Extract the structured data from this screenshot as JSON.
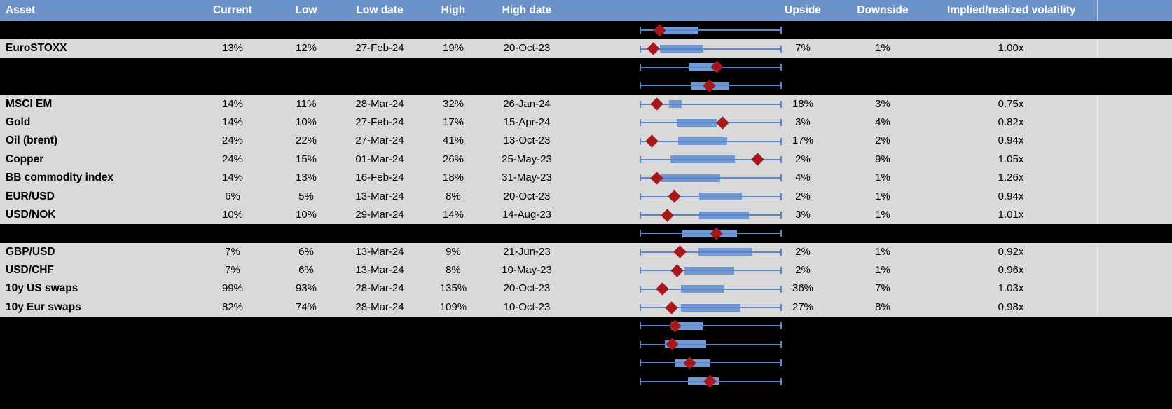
{
  "header": {
    "labels": {
      "asset": "Asset",
      "current": "Current",
      "low": "Low",
      "low_date": "Low date",
      "high": "High",
      "high_date": "High date",
      "upside": "Upside",
      "downside": "Downside",
      "implied_realized": "Implied/realized volatility"
    }
  },
  "colors": {
    "header_bg": "#6b93c9",
    "header_text": "#ffffff",
    "row_gray": "#d9d9d9",
    "row_black": "#000000",
    "whisker_blue": "#5b86c8",
    "box_blue": "#7299d4",
    "marker_red": "#a4181e",
    "divider_gray": "#a6a6a6"
  },
  "chart_data": {
    "type": "boxplot",
    "orientation": "horizontal",
    "title": "Implied volatility ranges by asset",
    "note": "Per row: whisker spans the period low-to-high implied volatility (normalized 0-1 across full width); blue box = middle range of the period; red diamond = current level. box and marker values are fractions of the whisker span. Rows with empty asset labels are blacked-out/redacted rows that still show a box plot.",
    "whisker_span": [
      0,
      1
    ],
    "rows": [
      {
        "redacted": true,
        "asset": "",
        "current": "",
        "low": "",
        "low_date": "",
        "high": "",
        "high_date": "",
        "upside": "",
        "downside": "",
        "implied_realized": "",
        "box": [
          0.168,
          0.416
        ],
        "marker": 0.139
      },
      {
        "redacted": false,
        "asset": "EuroSTOXX",
        "current": "13%",
        "low": "12%",
        "low_date": "27-Feb-24",
        "high": "19%",
        "high_date": "20-Oct-23",
        "upside": "7%",
        "downside": "1%",
        "implied_realized": "1.00x",
        "box": [
          0.144,
          0.45
        ],
        "marker": 0.094
      },
      {
        "redacted": true,
        "asset": "",
        "current": "",
        "low": "",
        "low_date": "",
        "high": "",
        "high_date": "",
        "upside": "",
        "downside": "",
        "implied_realized": "",
        "box": [
          0.347,
          0.564
        ],
        "marker": 0.545
      },
      {
        "redacted": true,
        "asset": "",
        "current": "",
        "low": "",
        "low_date": "",
        "high": "",
        "high_date": "",
        "upside": "",
        "downside": "",
        "implied_realized": "",
        "box": [
          0.366,
          0.629
        ],
        "marker": 0.49
      },
      {
        "redacted": false,
        "asset": "MSCI EM",
        "current": "14%",
        "low": "11%",
        "low_date": "28-Mar-24",
        "high": "32%",
        "high_date": "26-Jan-24",
        "upside": "18%",
        "downside": "3%",
        "implied_realized": "0.75x",
        "box": [
          0.208,
          0.297
        ],
        "marker": 0.119
      },
      {
        "redacted": false,
        "asset": "Gold",
        "current": "14%",
        "low": "10%",
        "low_date": "27-Feb-24",
        "high": "17%",
        "high_date": "15-Apr-24",
        "upside": "3%",
        "downside": "4%",
        "implied_realized": "0.82x",
        "box": [
          0.262,
          0.54
        ],
        "marker": 0.584
      },
      {
        "redacted": false,
        "asset": "Oil (brent)",
        "current": "24%",
        "low": "22%",
        "low_date": "27-Mar-24",
        "high": "41%",
        "high_date": "13-Oct-23",
        "upside": "17%",
        "downside": "2%",
        "implied_realized": "0.94x",
        "box": [
          0.272,
          0.614
        ],
        "marker": 0.084
      },
      {
        "redacted": false,
        "asset": "Copper",
        "current": "24%",
        "low": "15%",
        "low_date": "01-Mar-24",
        "high": "26%",
        "high_date": "25-May-23",
        "upside": "2%",
        "downside": "9%",
        "implied_realized": "1.05x",
        "box": [
          0.218,
          0.668
        ],
        "marker": 0.832
      },
      {
        "redacted": false,
        "asset": "BB commodity index",
        "current": "14%",
        "low": "13%",
        "low_date": "16-Feb-24",
        "high": "18%",
        "high_date": "31-May-23",
        "upside": "4%",
        "downside": "1%",
        "implied_realized": "1.26x",
        "box": [
          0.149,
          0.569
        ],
        "marker": 0.119
      },
      {
        "redacted": false,
        "asset": "EUR/USD",
        "current": "6%",
        "low": "5%",
        "low_date": "13-Mar-24",
        "high": "8%",
        "high_date": "20-Oct-23",
        "upside": "2%",
        "downside": "1%",
        "implied_realized": "0.94x",
        "box": [
          0.421,
          0.718
        ],
        "marker": 0.243
      },
      {
        "redacted": false,
        "asset": "USD/NOK",
        "current": "10%",
        "low": "10%",
        "low_date": "29-Mar-24",
        "high": "14%",
        "high_date": "14-Aug-23",
        "upside": "3%",
        "downside": "1%",
        "implied_realized": "1.01x",
        "box": [
          0.421,
          0.767
        ],
        "marker": 0.193
      },
      {
        "redacted": true,
        "asset": "",
        "current": "",
        "low": "",
        "low_date": "",
        "high": "",
        "high_date": "",
        "upside": "",
        "downside": "",
        "implied_realized": "",
        "box": [
          0.302,
          0.683
        ],
        "marker": 0.54
      },
      {
        "redacted": false,
        "asset": "GBP/USD",
        "current": "7%",
        "low": "6%",
        "low_date": "13-Mar-24",
        "high": "9%",
        "high_date": "21-Jun-23",
        "upside": "2%",
        "downside": "1%",
        "implied_realized": "0.92x",
        "box": [
          0.416,
          0.792
        ],
        "marker": 0.282
      },
      {
        "redacted": false,
        "asset": "USD/CHF",
        "current": "7%",
        "low": "6%",
        "low_date": "13-Mar-24",
        "high": "8%",
        "high_date": "10-May-23",
        "upside": "2%",
        "downside": "1%",
        "implied_realized": "0.96x",
        "box": [
          0.317,
          0.663
        ],
        "marker": 0.262
      },
      {
        "redacted": false,
        "asset": "10y US swaps",
        "current": "99%",
        "low": "93%",
        "low_date": "28-Mar-24",
        "high": "135%",
        "high_date": "20-Oct-23",
        "upside": "36%",
        "downside": "7%",
        "implied_realized": "1.03x",
        "box": [
          0.292,
          0.594
        ],
        "marker": 0.158
      },
      {
        "redacted": false,
        "asset": "10y Eur swaps",
        "current": "82%",
        "low": "74%",
        "low_date": "28-Mar-24",
        "high": "109%",
        "high_date": "10-Oct-23",
        "upside": "27%",
        "downside": "8%",
        "implied_realized": "0.98x",
        "box": [
          0.292,
          0.708
        ],
        "marker": 0.223
      },
      {
        "redacted": true,
        "asset": "",
        "current": "",
        "low": "",
        "low_date": "",
        "high": "",
        "high_date": "",
        "upside": "",
        "downside": "",
        "implied_realized": "",
        "box": [
          0.223,
          0.441
        ],
        "marker": 0.248
      },
      {
        "redacted": true,
        "asset": "",
        "current": "",
        "low": "",
        "low_date": "",
        "high": "",
        "high_date": "",
        "upside": "",
        "downside": "",
        "implied_realized": "",
        "box": [
          0.178,
          0.47
        ],
        "marker": 0.228
      },
      {
        "redacted": true,
        "asset": "",
        "current": "",
        "low": "",
        "low_date": "",
        "high": "",
        "high_date": "",
        "upside": "",
        "downside": "",
        "implied_realized": "",
        "box": [
          0.248,
          0.5
        ],
        "marker": 0.351
      },
      {
        "redacted": true,
        "asset": "",
        "current": "",
        "low": "",
        "low_date": "",
        "high": "",
        "high_date": "",
        "upside": "",
        "downside": "",
        "implied_realized": "",
        "box": [
          0.342,
          0.559
        ],
        "marker": 0.495,
        "bottom_divider": true
      }
    ]
  }
}
